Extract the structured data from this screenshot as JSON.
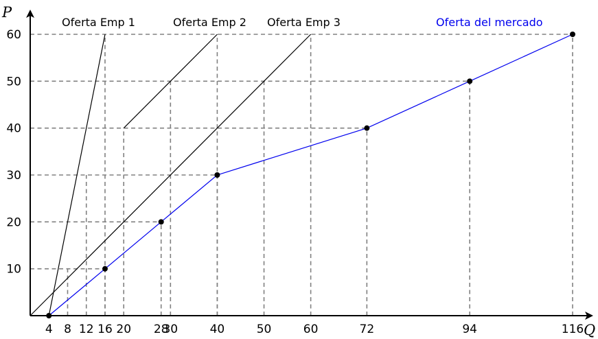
{
  "chart_data": {
    "type": "line",
    "xlabel": "Q",
    "ylabel": "P",
    "xlim": [
      0,
      116
    ],
    "ylim": [
      0,
      60
    ],
    "grid": "dashed guide lines to data points",
    "x_ticks": [
      4,
      8,
      12,
      16,
      20,
      28,
      30,
      40,
      50,
      60,
      72,
      94,
      116
    ],
    "y_ticks": [
      10,
      20,
      30,
      40,
      50,
      60
    ],
    "series": [
      {
        "name": "Oferta Emp 1",
        "color": "#000000",
        "points": [
          [
            4,
            0
          ],
          [
            16,
            60
          ]
        ]
      },
      {
        "name": "Oferta Emp 2",
        "color": "#000000",
        "points": [
          [
            20,
            40
          ],
          [
            40,
            60
          ]
        ]
      },
      {
        "name": "Oferta Emp 3",
        "color": "#000000",
        "points": [
          [
            0,
            0
          ],
          [
            60,
            60
          ]
        ]
      },
      {
        "name": "Oferta del mercado",
        "color": "#0000ee",
        "markers": true,
        "points": [
          [
            4,
            0
          ],
          [
            16,
            10
          ],
          [
            28,
            20
          ],
          [
            40,
            30
          ],
          [
            72,
            40
          ],
          [
            94,
            50
          ],
          [
            116,
            60
          ]
        ]
      }
    ],
    "guides": [
      {
        "x": 8,
        "y": 10
      },
      {
        "x": 12,
        "y": 30
      },
      {
        "x": 16,
        "y": 10
      },
      {
        "x": 16,
        "y": 60
      },
      {
        "x": 20,
        "y": 40
      },
      {
        "x": 28,
        "y": 20
      },
      {
        "x": 30,
        "y": 50
      },
      {
        "x": 40,
        "y": 30
      },
      {
        "x": 40,
        "y": 60
      },
      {
        "x": 50,
        "y": 50
      },
      {
        "x": 60,
        "y": 60
      },
      {
        "x": 72,
        "y": 40
      },
      {
        "x": 94,
        "y": 50
      },
      {
        "x": 116,
        "y": 60
      }
    ]
  }
}
